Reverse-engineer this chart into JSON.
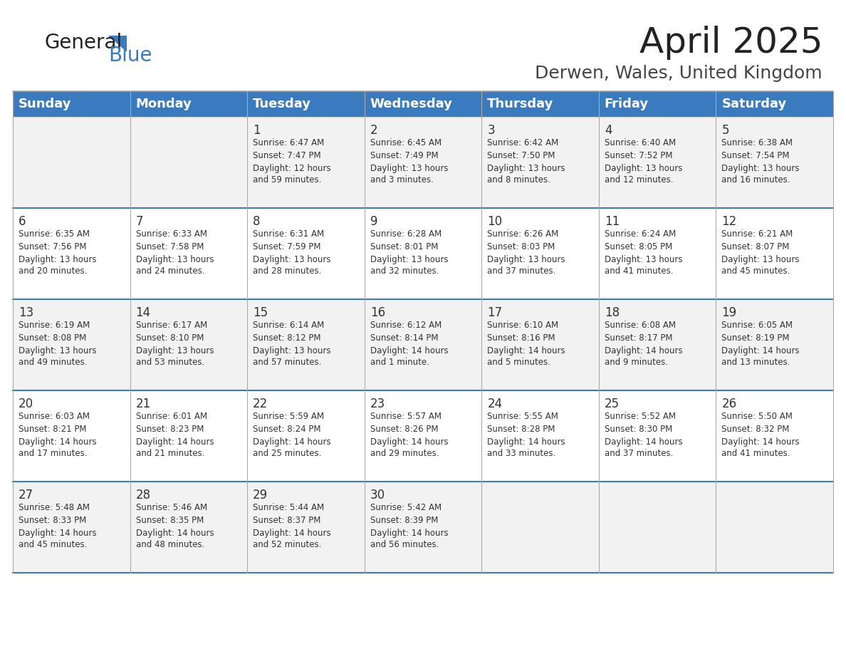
{
  "title": "April 2025",
  "subtitle": "Derwen, Wales, United Kingdom",
  "header_bg_color": "#3a7bbf",
  "header_text_color": "#ffffff",
  "days_of_week": [
    "Sunday",
    "Monday",
    "Tuesday",
    "Wednesday",
    "Thursday",
    "Friday",
    "Saturday"
  ],
  "odd_row_bg": "#f2f2f2",
  "even_row_bg": "#ffffff",
  "text_color": "#333333",
  "title_color": "#222222",
  "subtitle_color": "#444444",
  "header_font_size": 13,
  "title_font_size": 36,
  "subtitle_font_size": 18,
  "day_num_font_size": 12,
  "cell_text_font_size": 8.5,
  "logo_general_color": "#222222",
  "logo_blue_color": "#3a7bbf",
  "calendar_data": [
    [
      {
        "day": "",
        "sunrise": "",
        "sunset": "",
        "daylight": ""
      },
      {
        "day": "",
        "sunrise": "",
        "sunset": "",
        "daylight": ""
      },
      {
        "day": "1",
        "sunrise": "Sunrise: 6:47 AM",
        "sunset": "Sunset: 7:47 PM",
        "daylight": "Daylight: 12 hours\nand 59 minutes."
      },
      {
        "day": "2",
        "sunrise": "Sunrise: 6:45 AM",
        "sunset": "Sunset: 7:49 PM",
        "daylight": "Daylight: 13 hours\nand 3 minutes."
      },
      {
        "day": "3",
        "sunrise": "Sunrise: 6:42 AM",
        "sunset": "Sunset: 7:50 PM",
        "daylight": "Daylight: 13 hours\nand 8 minutes."
      },
      {
        "day": "4",
        "sunrise": "Sunrise: 6:40 AM",
        "sunset": "Sunset: 7:52 PM",
        "daylight": "Daylight: 13 hours\nand 12 minutes."
      },
      {
        "day": "5",
        "sunrise": "Sunrise: 6:38 AM",
        "sunset": "Sunset: 7:54 PM",
        "daylight": "Daylight: 13 hours\nand 16 minutes."
      }
    ],
    [
      {
        "day": "6",
        "sunrise": "Sunrise: 6:35 AM",
        "sunset": "Sunset: 7:56 PM",
        "daylight": "Daylight: 13 hours\nand 20 minutes."
      },
      {
        "day": "7",
        "sunrise": "Sunrise: 6:33 AM",
        "sunset": "Sunset: 7:58 PM",
        "daylight": "Daylight: 13 hours\nand 24 minutes."
      },
      {
        "day": "8",
        "sunrise": "Sunrise: 6:31 AM",
        "sunset": "Sunset: 7:59 PM",
        "daylight": "Daylight: 13 hours\nand 28 minutes."
      },
      {
        "day": "9",
        "sunrise": "Sunrise: 6:28 AM",
        "sunset": "Sunset: 8:01 PM",
        "daylight": "Daylight: 13 hours\nand 32 minutes."
      },
      {
        "day": "10",
        "sunrise": "Sunrise: 6:26 AM",
        "sunset": "Sunset: 8:03 PM",
        "daylight": "Daylight: 13 hours\nand 37 minutes."
      },
      {
        "day": "11",
        "sunrise": "Sunrise: 6:24 AM",
        "sunset": "Sunset: 8:05 PM",
        "daylight": "Daylight: 13 hours\nand 41 minutes."
      },
      {
        "day": "12",
        "sunrise": "Sunrise: 6:21 AM",
        "sunset": "Sunset: 8:07 PM",
        "daylight": "Daylight: 13 hours\nand 45 minutes."
      }
    ],
    [
      {
        "day": "13",
        "sunrise": "Sunrise: 6:19 AM",
        "sunset": "Sunset: 8:08 PM",
        "daylight": "Daylight: 13 hours\nand 49 minutes."
      },
      {
        "day": "14",
        "sunrise": "Sunrise: 6:17 AM",
        "sunset": "Sunset: 8:10 PM",
        "daylight": "Daylight: 13 hours\nand 53 minutes."
      },
      {
        "day": "15",
        "sunrise": "Sunrise: 6:14 AM",
        "sunset": "Sunset: 8:12 PM",
        "daylight": "Daylight: 13 hours\nand 57 minutes."
      },
      {
        "day": "16",
        "sunrise": "Sunrise: 6:12 AM",
        "sunset": "Sunset: 8:14 PM",
        "daylight": "Daylight: 14 hours\nand 1 minute."
      },
      {
        "day": "17",
        "sunrise": "Sunrise: 6:10 AM",
        "sunset": "Sunset: 8:16 PM",
        "daylight": "Daylight: 14 hours\nand 5 minutes."
      },
      {
        "day": "18",
        "sunrise": "Sunrise: 6:08 AM",
        "sunset": "Sunset: 8:17 PM",
        "daylight": "Daylight: 14 hours\nand 9 minutes."
      },
      {
        "day": "19",
        "sunrise": "Sunrise: 6:05 AM",
        "sunset": "Sunset: 8:19 PM",
        "daylight": "Daylight: 14 hours\nand 13 minutes."
      }
    ],
    [
      {
        "day": "20",
        "sunrise": "Sunrise: 6:03 AM",
        "sunset": "Sunset: 8:21 PM",
        "daylight": "Daylight: 14 hours\nand 17 minutes."
      },
      {
        "day": "21",
        "sunrise": "Sunrise: 6:01 AM",
        "sunset": "Sunset: 8:23 PM",
        "daylight": "Daylight: 14 hours\nand 21 minutes."
      },
      {
        "day": "22",
        "sunrise": "Sunrise: 5:59 AM",
        "sunset": "Sunset: 8:24 PM",
        "daylight": "Daylight: 14 hours\nand 25 minutes."
      },
      {
        "day": "23",
        "sunrise": "Sunrise: 5:57 AM",
        "sunset": "Sunset: 8:26 PM",
        "daylight": "Daylight: 14 hours\nand 29 minutes."
      },
      {
        "day": "24",
        "sunrise": "Sunrise: 5:55 AM",
        "sunset": "Sunset: 8:28 PM",
        "daylight": "Daylight: 14 hours\nand 33 minutes."
      },
      {
        "day": "25",
        "sunrise": "Sunrise: 5:52 AM",
        "sunset": "Sunset: 8:30 PM",
        "daylight": "Daylight: 14 hours\nand 37 minutes."
      },
      {
        "day": "26",
        "sunrise": "Sunrise: 5:50 AM",
        "sunset": "Sunset: 8:32 PM",
        "daylight": "Daylight: 14 hours\nand 41 minutes."
      }
    ],
    [
      {
        "day": "27",
        "sunrise": "Sunrise: 5:48 AM",
        "sunset": "Sunset: 8:33 PM",
        "daylight": "Daylight: 14 hours\nand 45 minutes."
      },
      {
        "day": "28",
        "sunrise": "Sunrise: 5:46 AM",
        "sunset": "Sunset: 8:35 PM",
        "daylight": "Daylight: 14 hours\nand 48 minutes."
      },
      {
        "day": "29",
        "sunrise": "Sunrise: 5:44 AM",
        "sunset": "Sunset: 8:37 PM",
        "daylight": "Daylight: 14 hours\nand 52 minutes."
      },
      {
        "day": "30",
        "sunrise": "Sunrise: 5:42 AM",
        "sunset": "Sunset: 8:39 PM",
        "daylight": "Daylight: 14 hours\nand 56 minutes."
      },
      {
        "day": "",
        "sunrise": "",
        "sunset": "",
        "daylight": ""
      },
      {
        "day": "",
        "sunrise": "",
        "sunset": "",
        "daylight": ""
      },
      {
        "day": "",
        "sunrise": "",
        "sunset": "",
        "daylight": ""
      }
    ]
  ]
}
